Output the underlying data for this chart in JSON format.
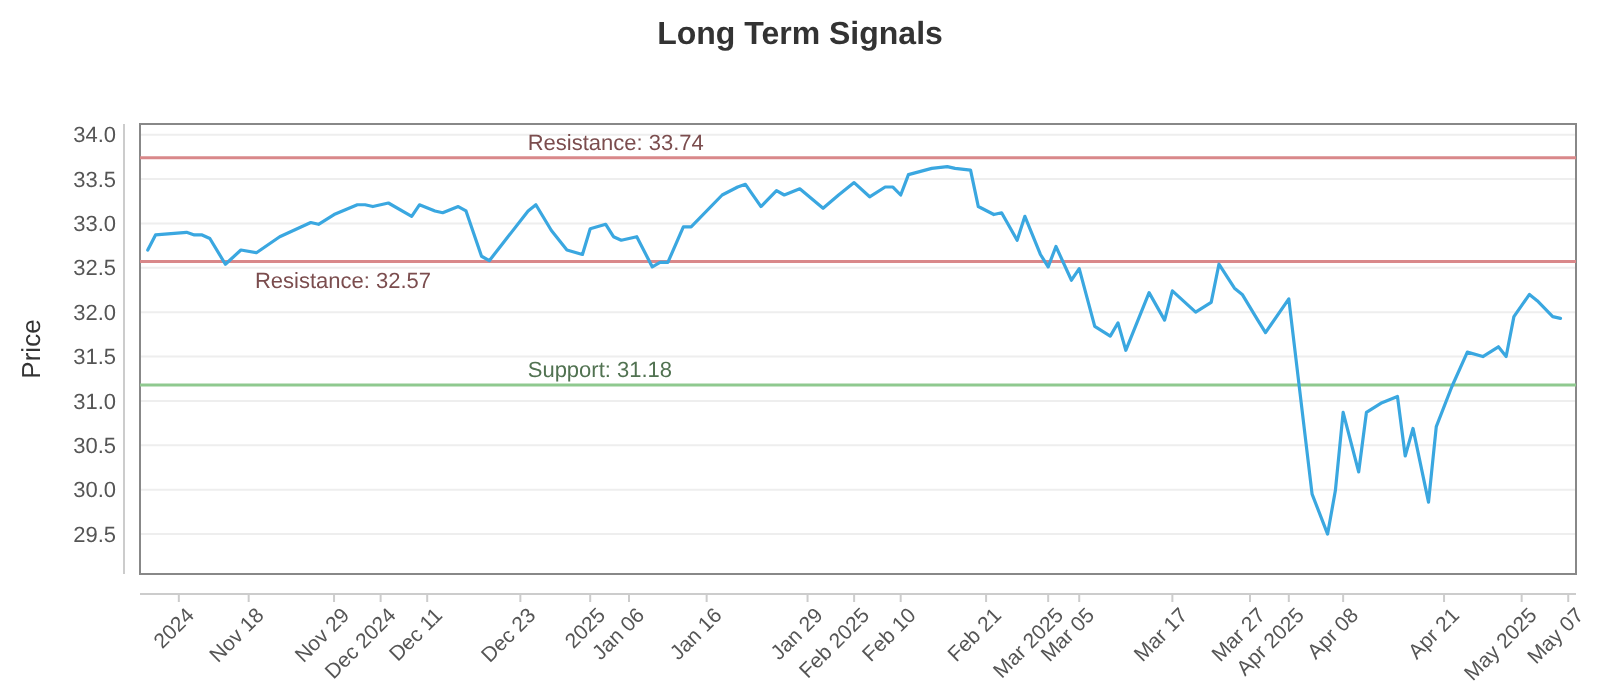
{
  "chart_data": {
    "type": "line",
    "title": "Long Term Signals",
    "ylabel": "Price",
    "x": [
      "2024-11-05",
      "2024-11-06",
      "2024-11-10",
      "2024-11-11",
      "2024-11-12",
      "2024-11-13",
      "2024-11-15",
      "2024-11-17",
      "2024-11-19",
      "2024-11-22",
      "2024-11-26",
      "2024-11-27",
      "2024-11-29",
      "2024-12-02",
      "2024-12-03",
      "2024-12-04",
      "2024-12-06",
      "2024-12-09",
      "2024-12-10",
      "2024-12-12",
      "2024-12-13",
      "2024-12-15",
      "2024-12-16",
      "2024-12-18",
      "2024-12-19",
      "2024-12-24",
      "2024-12-25",
      "2024-12-27",
      "2024-12-29",
      "2024-12-31",
      "2025-01-01",
      "2025-01-03",
      "2025-01-04",
      "2025-01-05",
      "2025-01-07",
      "2025-01-09",
      "2025-01-10",
      "2025-01-11",
      "2025-01-13",
      "2025-01-14",
      "2025-01-18",
      "2025-01-20",
      "2025-01-21",
      "2025-01-23",
      "2025-01-25",
      "2025-01-26",
      "2025-01-28",
      "2025-01-31",
      "2025-02-02",
      "2025-02-04",
      "2025-02-06",
      "2025-02-08",
      "2025-02-09",
      "2025-02-10",
      "2025-02-11",
      "2025-02-14",
      "2025-02-16",
      "2025-02-17",
      "2025-02-19",
      "2025-02-20",
      "2025-02-22",
      "2025-02-23",
      "2025-02-25",
      "2025-02-26",
      "2025-02-28",
      "2025-03-01",
      "2025-03-02",
      "2025-03-04",
      "2025-03-05",
      "2025-03-07",
      "2025-03-09",
      "2025-03-10",
      "2025-03-11",
      "2025-03-14",
      "2025-03-16",
      "2025-03-17",
      "2025-03-20",
      "2025-03-22",
      "2025-03-23",
      "2025-03-25",
      "2025-03-26",
      "2025-03-28",
      "2025-03-29",
      "2025-04-01",
      "2025-04-04",
      "2025-04-06",
      "2025-04-07",
      "2025-04-08",
      "2025-04-10",
      "2025-04-11",
      "2025-04-13",
      "2025-04-15",
      "2025-04-16",
      "2025-04-17",
      "2025-04-19",
      "2025-04-20",
      "2025-04-22",
      "2025-04-24",
      "2025-04-26",
      "2025-04-28",
      "2025-04-29",
      "2025-04-30",
      "2025-05-02",
      "2025-05-03",
      "2025-05-05",
      "2025-05-06"
    ],
    "series": [
      {
        "color": "#3aa7e0",
        "values": [
          32.7,
          32.87,
          32.9,
          32.87,
          32.87,
          32.83,
          32.54,
          32.7,
          32.67,
          32.85,
          33.01,
          32.99,
          33.1,
          33.21,
          33.21,
          33.19,
          33.23,
          33.08,
          33.21,
          33.14,
          33.12,
          33.19,
          33.14,
          32.63,
          32.58,
          33.14,
          33.21,
          32.92,
          32.7,
          32.65,
          32.94,
          32.99,
          32.85,
          32.81,
          32.85,
          32.51,
          32.56,
          32.56,
          32.96,
          32.96,
          33.32,
          33.41,
          33.44,
          33.19,
          33.37,
          33.32,
          33.39,
          33.17,
          33.32,
          33.46,
          33.3,
          33.41,
          33.41,
          33.32,
          33.55,
          33.62,
          33.64,
          33.62,
          33.6,
          33.19,
          33.1,
          33.12,
          32.81,
          33.08,
          32.65,
          32.51,
          32.74,
          32.36,
          32.49,
          31.84,
          31.73,
          31.88,
          31.57,
          32.22,
          31.91,
          32.24,
          32.0,
          32.11,
          32.54,
          32.27,
          32.2,
          31.91,
          31.77,
          32.15,
          29.95,
          29.5,
          29.99,
          30.87,
          30.2,
          30.87,
          30.98,
          31.05,
          30.38,
          30.69,
          29.86,
          30.71,
          31.16,
          31.55,
          31.5,
          31.61,
          31.5,
          31.95,
          32.2,
          32.13,
          31.95,
          31.93
        ]
      }
    ],
    "xlim": [
      "2024-11-04",
      "2025-05-08"
    ],
    "xticks": [
      {
        "value": "2024-11-09",
        "label": "2024"
      },
      {
        "value": "2024-11-18",
        "label": "Nov 18"
      },
      {
        "value": "2024-11-29",
        "label": "Nov 29"
      },
      {
        "value": "2024-12-05",
        "label": "Dec 2024"
      },
      {
        "value": "2024-12-11",
        "label": "Dec 11"
      },
      {
        "value": "2024-12-23",
        "label": "Dec 23"
      },
      {
        "value": "2025-01-01",
        "label": "2025"
      },
      {
        "value": "2025-01-06",
        "label": "Jan 06"
      },
      {
        "value": "2025-01-16",
        "label": "Jan 16"
      },
      {
        "value": "2025-01-29",
        "label": "Jan 29"
      },
      {
        "value": "2025-02-04",
        "label": "Feb 2025"
      },
      {
        "value": "2025-02-10",
        "label": "Feb 10"
      },
      {
        "value": "2025-02-21",
        "label": "Feb 21"
      },
      {
        "value": "2025-03-01",
        "label": "Mar 2025"
      },
      {
        "value": "2025-03-05",
        "label": "Mar 05"
      },
      {
        "value": "2025-03-17",
        "label": "Mar 17"
      },
      {
        "value": "2025-03-27",
        "label": "Mar 27"
      },
      {
        "value": "2025-04-01",
        "label": "Apr 2025"
      },
      {
        "value": "2025-04-08",
        "label": "Apr 08"
      },
      {
        "value": "2025-04-21",
        "label": "Apr 21"
      },
      {
        "value": "2025-05-01",
        "label": "May 2025"
      },
      {
        "value": "2025-05-07",
        "label": "May 07"
      }
    ],
    "ylim": [
      29.05,
      34.12
    ],
    "yticks": [
      29.5,
      {
        "value": 30,
        "label": "30.0"
      },
      30.5,
      {
        "value": 31,
        "label": "31.0"
      },
      31.5,
      {
        "value": 32,
        "label": "32.0"
      },
      32.5,
      {
        "value": 33,
        "label": "33.0"
      },
      33.5,
      {
        "value": 34,
        "label": "34.0"
      }
    ],
    "ref_lines": [
      {
        "axis": "y",
        "value": 33.74,
        "label": "Resistance: 33.74",
        "color": "#d9888a"
      },
      {
        "axis": "y",
        "value": 32.57,
        "label": "Resistance: 32.57",
        "color": "#d9888a"
      },
      {
        "axis": "y",
        "value": 31.18,
        "label": "Support: 31.18",
        "color": "#8fc98f"
      }
    ],
    "grid": "y"
  }
}
